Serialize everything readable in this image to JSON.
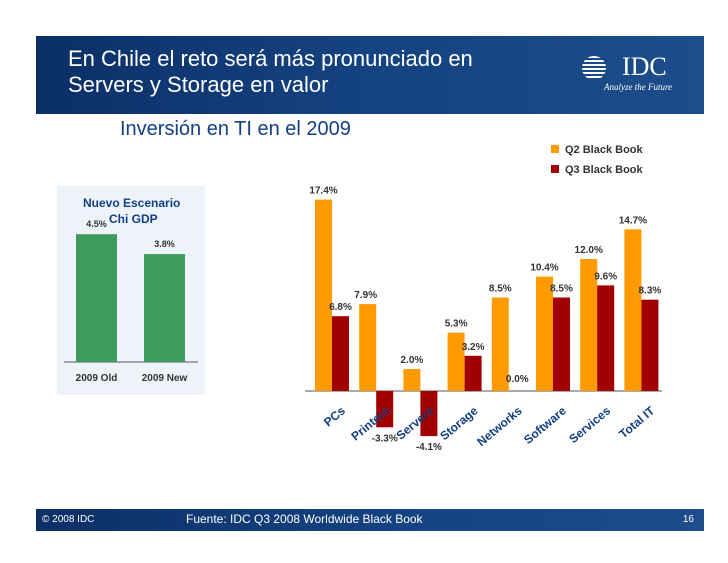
{
  "slide": {
    "title_line1": "En Chile el reto será más pronunciado en",
    "title_line2": "Servers y Storage en valor",
    "subtitle": "Inversión en TI en el  2009",
    "logo_text": "IDC",
    "logo_tagline": "Analyze the Future",
    "copyright": "© 2008 IDC",
    "source": "Fuente: IDC Q3 2008 Worldwide  Black Book",
    "page_number": "16",
    "colors": {
      "header_bg": "#14417f",
      "q2": "#ff9b00",
      "q3": "#a10000",
      "inset_bar": "#3f9a5e"
    }
  },
  "chart_data": [
    {
      "type": "bar",
      "categories": [
        "PCs",
        "Printers",
        "Servers",
        "Storage",
        "Networks",
        "Software",
        "Services",
        "Total IT"
      ],
      "series": [
        {
          "name": "Q2 Black Book",
          "values": [
            17.4,
            7.9,
            2.0,
            5.3,
            8.5,
            10.4,
            12.0,
            14.7
          ],
          "labels": [
            "17.4%",
            "7.9%",
            "2.0%",
            "5.3%",
            "8.5%",
            "10.4%",
            "12.0%",
            "14.7%"
          ]
        },
        {
          "name": "Q3 Black Book",
          "values": [
            6.8,
            -3.3,
            -4.1,
            3.2,
            0.0,
            8.5,
            9.6,
            8.3
          ],
          "labels": [
            "6.8%",
            "-3.3%",
            "-4.1%",
            "3.2%",
            "0.0%",
            "8.5%",
            "9.6%",
            "8.3%"
          ]
        }
      ],
      "legend": "top-right",
      "ylim": [
        -5,
        18
      ]
    },
    {
      "type": "bar",
      "title_line1": "Nuevo Escenario",
      "title_line2": "Chi GDP",
      "categories": [
        "2009 Old",
        "2009 New"
      ],
      "values": [
        4.5,
        3.8
      ],
      "labels": [
        "4.5%",
        "3.8%"
      ],
      "ylim": [
        0,
        5.5
      ]
    }
  ]
}
